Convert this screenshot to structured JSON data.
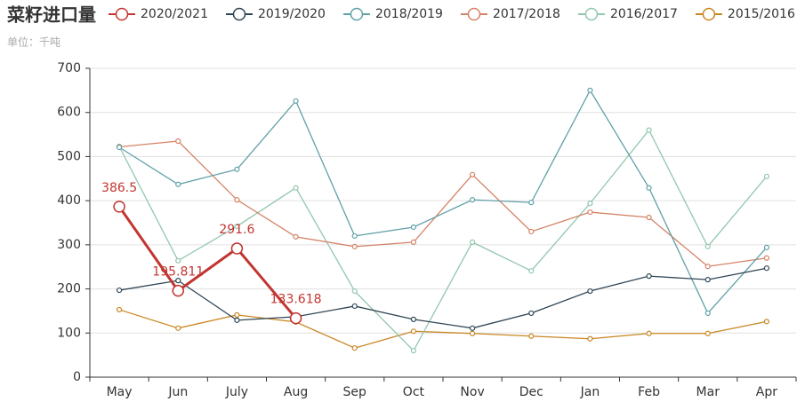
{
  "chart_data": {
    "type": "line",
    "title": "菜籽进口量",
    "subtitle": "单位：千吨",
    "categories": [
      "May",
      "Jun",
      "July",
      "Aug",
      "Sep",
      "Oct",
      "Nov",
      "Dec",
      "Jan",
      "Feb",
      "Mar",
      "Apr"
    ],
    "ylim": [
      0,
      700
    ],
    "yticks": [
      0,
      100,
      200,
      300,
      400,
      500,
      600,
      700
    ],
    "grid": true,
    "series": [
      {
        "name": "2020/2021",
        "color": "#c23531",
        "show_labels": true,
        "values": [
          386.5,
          195.811,
          291.6,
          133.618,
          null,
          null,
          null,
          null,
          null,
          null,
          null,
          null
        ]
      },
      {
        "name": "2019/2020",
        "color": "#2f4554",
        "values": [
          197,
          219,
          129,
          137,
          161,
          131,
          111,
          145,
          195,
          229,
          221,
          247
        ]
      },
      {
        "name": "2018/2019",
        "color": "#61a0a8",
        "values": [
          521,
          437,
          471,
          626,
          320,
          340,
          402,
          396,
          650,
          429,
          145,
          294
        ]
      },
      {
        "name": "2017/2018",
        "color": "#d48265",
        "values": [
          522,
          535,
          402,
          318,
          296,
          306,
          459,
          330,
          374,
          362,
          251,
          270
        ]
      },
      {
        "name": "2016/2017",
        "color": "#91c7ae",
        "values": [
          523,
          264,
          342,
          429,
          195,
          60,
          306,
          241,
          394,
          560,
          296,
          455
        ]
      },
      {
        "name": "2015/2016",
        "color": "#ca8622",
        "values": [
          153,
          111,
          141,
          125,
          66,
          104,
          99,
          93,
          87,
          99,
          99,
          126
        ]
      }
    ]
  }
}
